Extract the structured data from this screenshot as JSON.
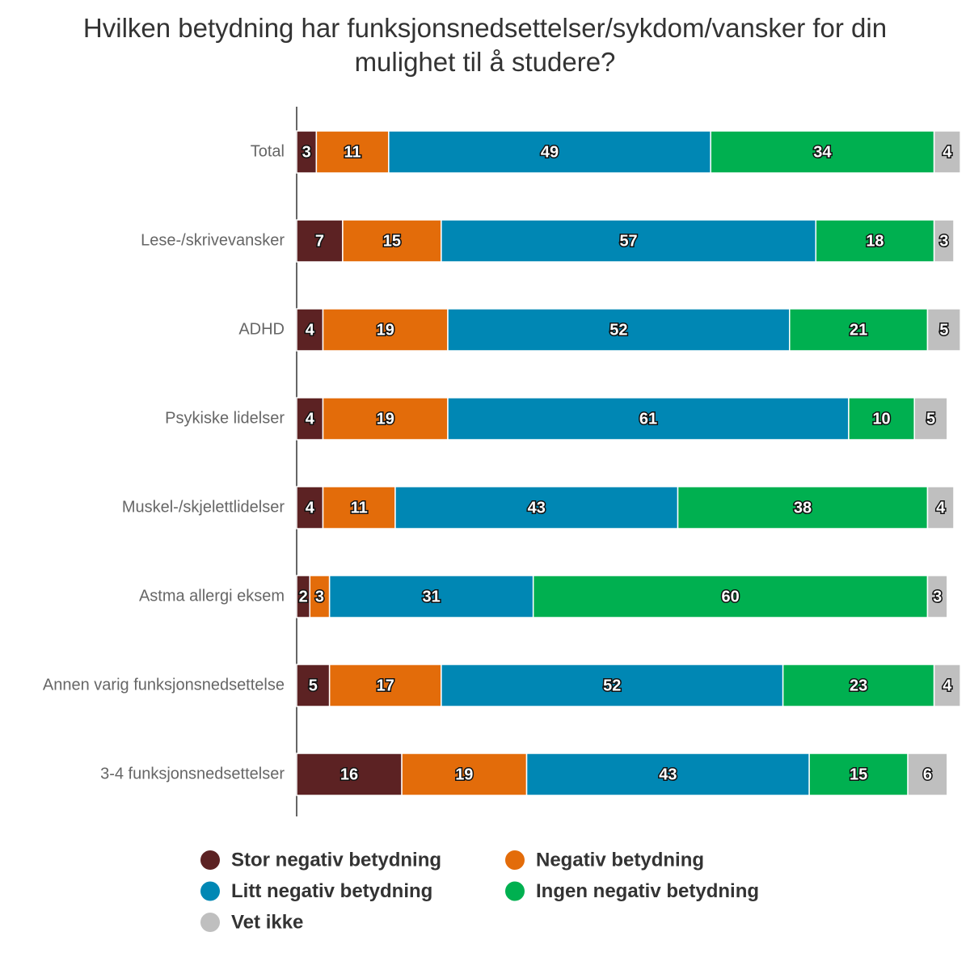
{
  "chart_data": {
    "type": "stacked-bar",
    "orientation": "horizontal",
    "title": "Hvilken betydning har funksjonsnedsettelser/sykdom/vansker for din mulighet til å studere?",
    "categories": [
      "Total",
      "Lese-/skrivevansker",
      "ADHD",
      "Psykiske lidelser",
      "Muskel-/skjelettlidelser",
      "Astma allergi eksem",
      "Annen varig funksjonsnedsettelse",
      "3-4 funksjonsnedsettelser"
    ],
    "xlim": [
      0,
      100
    ],
    "series": [
      {
        "name": "Stor negativ betydning",
        "color": "#5c2223",
        "values": [
          3,
          7,
          4,
          4,
          4,
          2,
          5,
          16
        ]
      },
      {
        "name": "Negativ betydning",
        "color": "#e36c0a",
        "values": [
          11,
          15,
          19,
          19,
          11,
          3,
          17,
          19
        ]
      },
      {
        "name": "Litt negativ betydning",
        "color": "#0087b4",
        "values": [
          49,
          57,
          52,
          61,
          43,
          31,
          52,
          43
        ]
      },
      {
        "name": "Ingen negativ betydning",
        "color": "#00b050",
        "values": [
          34,
          18,
          21,
          10,
          38,
          60,
          23,
          15
        ]
      },
      {
        "name": "Vet ikke",
        "color": "#bfbfbf",
        "values": [
          4,
          3,
          5,
          5,
          4,
          3,
          4,
          6
        ]
      }
    ],
    "legend": "bottom"
  }
}
